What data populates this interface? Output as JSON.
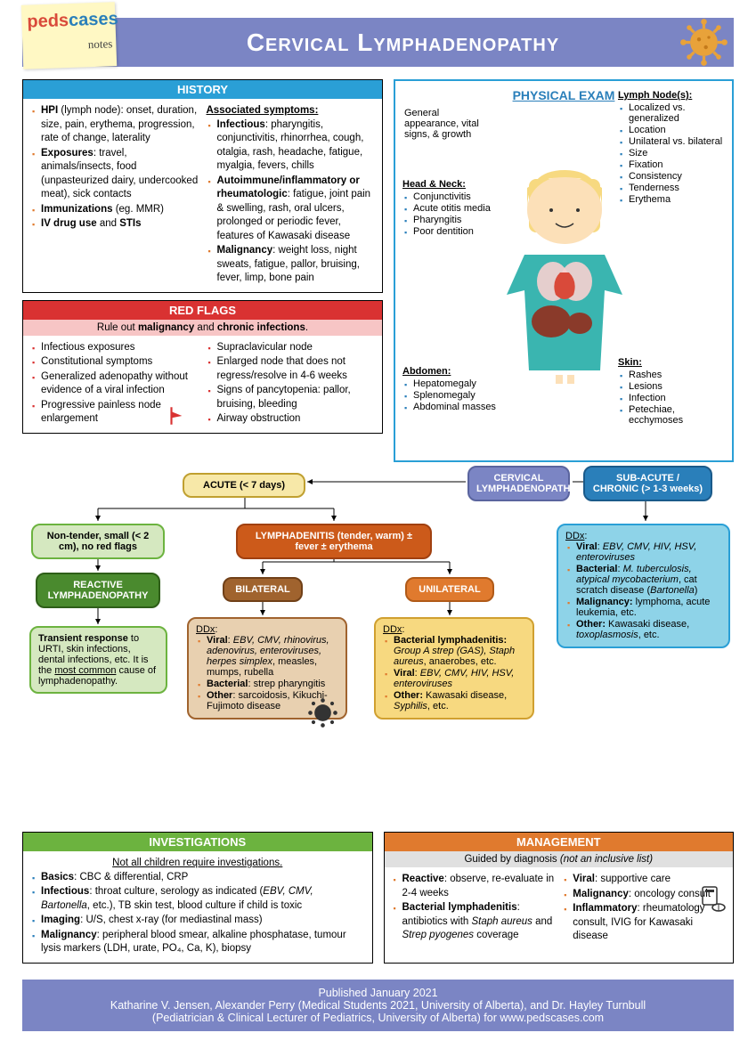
{
  "title": "Cervical Lymphadenopathy",
  "logo": {
    "p1": "peds",
    "p2": "cases",
    "notes": "notes"
  },
  "history": {
    "header": "HISTORY",
    "left": [
      "<b>HPI</b> (lymph node): onset, duration, size, pain, erythema, progression, rate of change, laterality",
      "<b>Exposures</b>: travel, animals/insects, food (unpasteurized dairy, undercooked meat), sick contacts",
      "<b>Immunizations</b> (eg. MMR)",
      "<b>IV drug use</b> and <b>STIs</b>"
    ],
    "right_title": "Associated symptoms:",
    "right": [
      "<b>Infectious</b>: pharyngitis, conjunctivitis, rhinorrhea, cough, otalgia, rash, headache, fatigue, myalgia, fevers, chills",
      "<b>Autoimmune/inflammatory or rheumatologic</b>: fatigue, joint pain & swelling, rash, oral ulcers, prolonged or periodic fever, features of Kawasaki disease",
      "<b>Malignancy</b>: weight loss, night sweats, fatigue, pallor, bruising, fever, limp, bone pain"
    ]
  },
  "redflags": {
    "header": "RED FLAGS",
    "sub": "Rule out <b>malignancy</b> and <b>chronic infections</b>.",
    "left": [
      "Infectious exposures",
      "Constitutional symptoms",
      "Generalized adenopathy without evidence of a viral infection",
      "Progressive painless node enlargement"
    ],
    "right": [
      "Supraclavicular node",
      "Enlarged node that does not regress/resolve in 4-6 weeks",
      "Signs of pancytopenia: pallor, bruising, bleeding",
      "Airway obstruction"
    ]
  },
  "pe": {
    "title": "PHYSICAL EXAM",
    "general": "General appearance, vital signs, & growth",
    "lymph": {
      "h": "Lymph Node(s):",
      "items": [
        "Localized vs. generalized",
        "Location",
        "Unilateral vs. bilateral",
        "Size",
        "Fixation",
        "Consistency",
        "Tenderness",
        "Erythema"
      ]
    },
    "head": {
      "h": "Head & Neck:",
      "items": [
        "Conjunctivitis",
        "Acute otitis media",
        "Pharyngitis",
        "Poor dentition"
      ]
    },
    "abdomen": {
      "h": "Abdomen:",
      "items": [
        "Hepatomegaly",
        "Splenomegaly",
        "Abdominal masses"
      ]
    },
    "skin": {
      "h": "Skin:",
      "items": [
        "Rashes",
        "Lesions",
        "Infection",
        "Petechiae, ecchymoses"
      ]
    }
  },
  "flow": {
    "root": "CERVICAL LYMPHADENOPATHY",
    "acute": "ACUTE (< 7 days)",
    "chronic": "SUB-ACUTE / CHRONIC (> 1-3 weeks)",
    "nontender": "Non-tender, small (< 2 cm), no red flags",
    "lymphadenitis": "LYMPHADENITIS (tender, warm) ± fever ± erythema",
    "reactive_h": "REACTIVE LYMPHADENOPATHY",
    "reactive_b": "<b>Transient response</b> to URTI, skin infections, dental infections, etc. It is the <u>most common</u> cause of lymphadenopathy.",
    "bilateral_h": "BILATERAL",
    "bilateral_b": "<u>DDx</u>:<ul><li><b>Viral</b>: <i>EBV, CMV, rhinovirus, adenovirus, enteroviruses, herpes simplex</i>, measles, mumps, rubella</li><li><b>Bacterial</b>: strep pharyngitis</li><li><b>Other</b>: sarcoidosis, Kikuchi-Fujimoto disease</li></ul>",
    "unilateral_h": "UNILATERAL",
    "unilateral_b": "<u>DDx</u>:<ul><li><b>Bacterial lymphadenitis:</b> <i>Group A strep (GAS), Staph aureus</i>, anaerobes, etc.</li><li><b>Viral</b>: <i>EBV, CMV, HIV, HSV, enteroviruses</i></li><li><b>Other:</b> Kawasaki disease, <i>Syphilis</i>, etc.</li></ul>",
    "chronic_b": "<u>DDx</u>:<ul><li><b>Viral</b>: <i>EBV, CMV, HIV, HSV, enteroviruses</i></li><li><b>Bacterial</b>: <i>M. tuberculosis, atypical mycobacterium</i>, cat scratch disease (<i>Bartonella</i>)</li><li><b>Malignancy:</b> lymphoma, acute leukemia, etc.</li><li><b>Other:</b> Kawasaki disease, <i>toxoplasmosis</i>, etc.</li></ul>"
  },
  "invest": {
    "header": "INVESTIGATIONS",
    "sub": "Not all children require investigations.",
    "items": [
      "<b>Basics</b>: CBC & differential, CRP",
      "<b>Infectious</b>: throat culture, serology as indicated (<i>EBV, CMV, Bartonella</i>, etc.), TB skin test, blood culture if child is toxic",
      "<b>Imaging</b>: U/S, chest x-ray (for mediastinal mass)",
      "<b>Malignancy</b>: peripheral blood smear, alkaline phosphatase, tumour lysis markers (LDH, urate, PO₄, Ca, K), biopsy"
    ]
  },
  "mgmt": {
    "header": "MANAGEMENT",
    "sub": "Guided by diagnosis <i>(not an inclusive list)</i>",
    "left": [
      "<b>Reactive</b>: observe, re-evaluate in 2-4 weeks",
      "<b>Bacterial lymphadenitis</b>: antibiotics with <i>Staph aureus</i> and <i>Strep pyogenes</i> coverage"
    ],
    "right": [
      "<b>Viral</b>: supportive care",
      "<b>Malignancy</b>: oncology consult",
      "<b>Inflammatory</b>: rheumatology consult, IVIG for Kawasaki disease"
    ]
  },
  "footer": {
    "l1": "Published January 2021",
    "l2": "Katharine V. Jensen, Alexander Perry (Medical Students 2021, University of Alberta), and Dr. Hayley Turnbull",
    "l3": "(Pediatrician & Clinical Lecturer of Pediatrics, University of Alberta) for www.pedscases.com"
  },
  "colors": {
    "purple": "#7b85c4",
    "blue": "#2a9fd6",
    "red": "#d93232",
    "green": "#6cb33f",
    "orange": "#e07a2e",
    "lightgreen": "#c4e0a8",
    "darkgreen": "#4a8a2e",
    "tan": "#d9b896",
    "brown": "#a0632e",
    "lightyellow": "#f7d980",
    "darkorange": "#cc5a1a",
    "lightblue": "#8ed3e8",
    "teal": "#17a2b8",
    "yellow": "#f0d060"
  }
}
